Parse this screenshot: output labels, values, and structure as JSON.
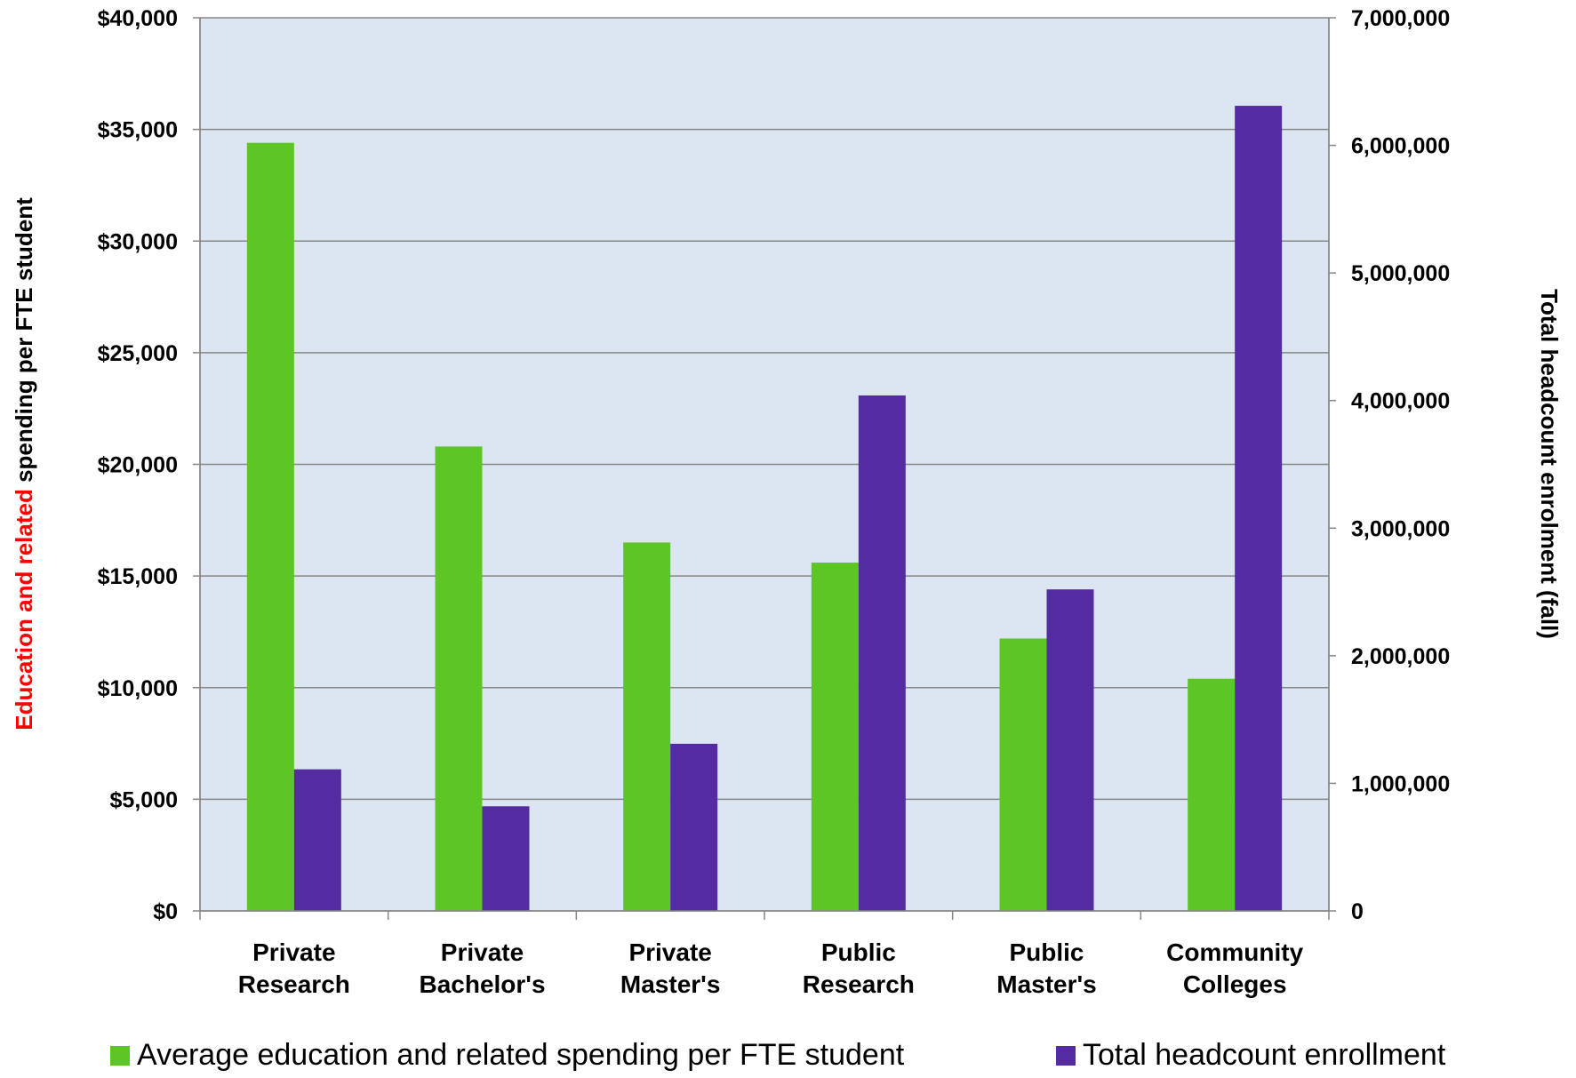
{
  "chart_data": {
    "type": "bar",
    "categories": [
      [
        "Private",
        "Research"
      ],
      [
        "Private",
        "Bachelor's"
      ],
      [
        "Private",
        "Master's"
      ],
      [
        "Public",
        "Research"
      ],
      [
        "Public",
        "Master's"
      ],
      [
        "Community",
        "Colleges"
      ]
    ],
    "series": [
      {
        "name": "Average education and related spending per FTE student",
        "axis": "left",
        "color": "#5ec526",
        "values": [
          34400,
          20800,
          16500,
          15600,
          12200,
          10400
        ]
      },
      {
        "name": "Total headcount enrollment",
        "axis": "right",
        "color": "#552ba2",
        "values": [
          1110000,
          820000,
          1310000,
          4040000,
          2520000,
          6310000
        ]
      }
    ],
    "ylabel_left": {
      "parts": [
        {
          "text": "Education and related",
          "color": "#ff0000"
        },
        {
          "text": " spending per FTE student",
          "color": "#000000"
        }
      ]
    },
    "ylabel_right": "Total headcount enrolment (fall)",
    "ylim_left": [
      0,
      40000
    ],
    "ylim_right": [
      0,
      7000000
    ],
    "yticks_left": [
      "$0",
      "$5,000",
      "$10,000",
      "$15,000",
      "$20,000",
      "$25,000",
      "$30,000",
      "$35,000",
      "$40,000"
    ],
    "yticks_right": [
      "0",
      "1,000,000",
      "2,000,000",
      "3,000,000",
      "4,000,000",
      "5,000,000",
      "6,000,000",
      "7,000,000"
    ],
    "plot_background": "#dce6f2",
    "grid": true,
    "legend_position": "bottom"
  }
}
